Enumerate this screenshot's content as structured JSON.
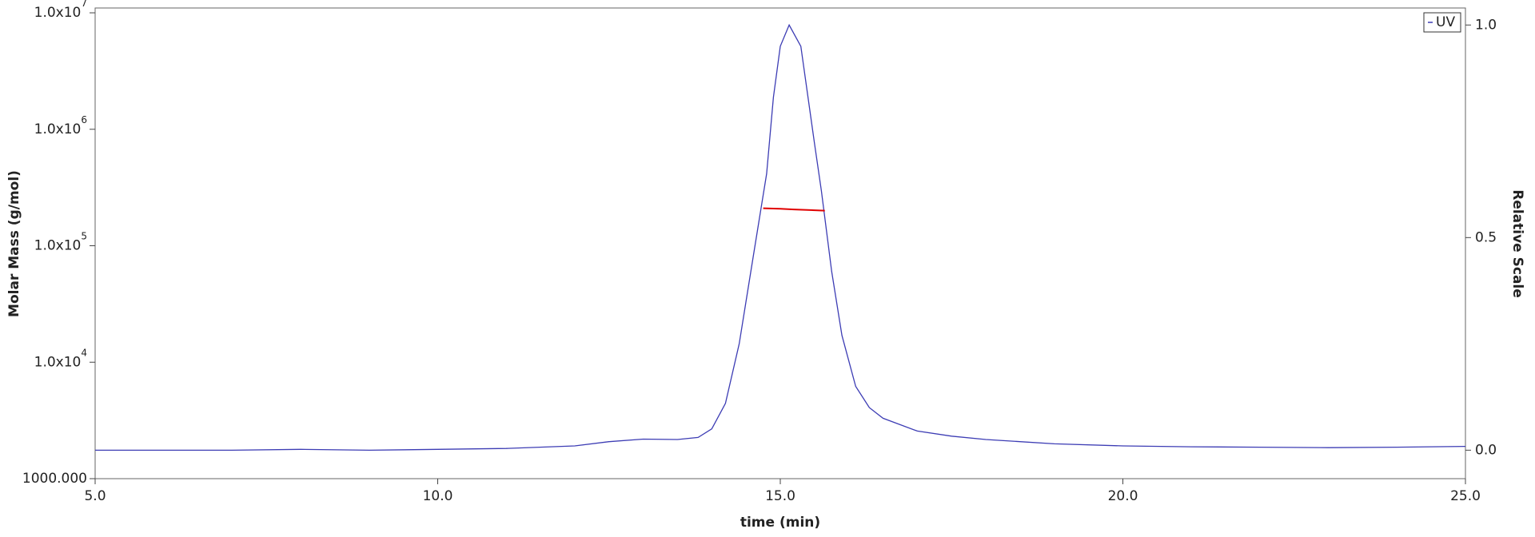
{
  "chart_data": {
    "type": "line",
    "x_label": "time (min)",
    "y_label": "Molar Mass (g/mol)",
    "y2_label": "Relative Scale",
    "xlim": [
      5,
      25
    ],
    "xticks": [
      {
        "value": 5,
        "label": "5.0"
      },
      {
        "value": 10,
        "label": "10.0"
      },
      {
        "value": 15,
        "label": "15.0"
      },
      {
        "value": 20,
        "label": "20.0"
      },
      {
        "value": 25,
        "label": "25.0"
      }
    ],
    "ylim": [
      1000,
      11000000
    ],
    "log_y": true,
    "yticks": [
      {
        "value": 1000,
        "label": "1000.000"
      },
      {
        "value": 10000,
        "label": "1.0x10",
        "exponent": "4"
      },
      {
        "value": 100000,
        "label": "1.0x10",
        "exponent": "5"
      },
      {
        "value": 1000000,
        "label": "1.0x10",
        "exponent": "6"
      },
      {
        "value": 10000000,
        "label": "1.0x10",
        "exponent": "7"
      }
    ],
    "y2lim": [
      -0.067,
      1.04
    ],
    "y2ticks": [
      {
        "value": 0,
        "label": "0.0"
      },
      0.5,
      {
        "value": 1,
        "label": "1.0"
      }
    ],
    "legend": "top-right",
    "series": [
      {
        "name": "UV",
        "color": "#3c3cb4",
        "axis": "y2",
        "x": [
          5,
          7,
          8,
          9,
          10,
          11,
          12,
          12.5,
          13,
          13.5,
          13.8,
          14.0,
          14.2,
          14.4,
          14.6,
          14.8,
          14.9,
          15.0,
          15.13,
          15.3,
          15.5,
          15.6,
          15.75,
          15.9,
          16.1,
          16.3,
          16.5,
          17,
          17.5,
          18,
          19,
          20,
          21,
          22,
          23,
          24,
          25
        ],
        "values": [
          0.0,
          0.0,
          0.002,
          0.0,
          0.002,
          0.004,
          0.01,
          0.02,
          0.026,
          0.025,
          0.03,
          0.05,
          0.11,
          0.25,
          0.45,
          0.65,
          0.83,
          0.95,
          1.0,
          0.95,
          0.72,
          0.61,
          0.42,
          0.27,
          0.15,
          0.1,
          0.075,
          0.045,
          0.033,
          0.025,
          0.015,
          0.01,
          0.008,
          0.007,
          0.006,
          0.007,
          0.009
        ]
      },
      {
        "color": "#e00000",
        "axis": "y",
        "x": [
          14.75,
          15.0,
          15.2,
          15.4,
          15.65
        ],
        "values": [
          210000,
          208000,
          205000,
          203000,
          200000
        ]
      }
    ]
  }
}
